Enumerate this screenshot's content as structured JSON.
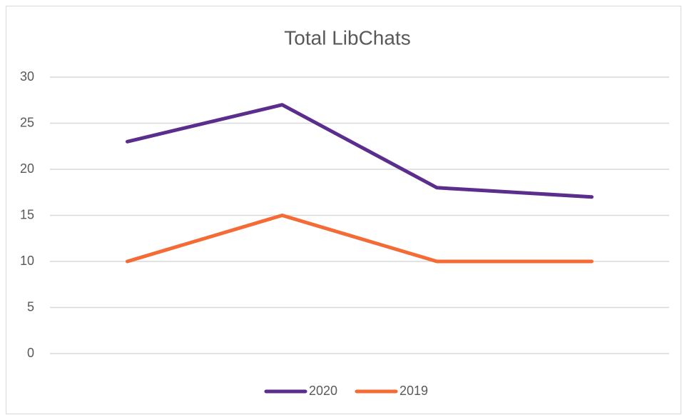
{
  "chart_data": {
    "type": "line",
    "title": "Total LibChats",
    "categories": [
      null,
      null,
      null,
      null
    ],
    "series": [
      {
        "name": "2020",
        "color": "#5b2d8c",
        "values": [
          23,
          27,
          18,
          17
        ]
      },
      {
        "name": "2019",
        "color": "#f46b35",
        "values": [
          10,
          15,
          10,
          10
        ]
      }
    ],
    "ylim": [
      0,
      30
    ],
    "yticks": [
      0,
      5,
      10,
      15,
      20,
      25,
      30
    ],
    "grid": true,
    "legend": "bottom"
  }
}
